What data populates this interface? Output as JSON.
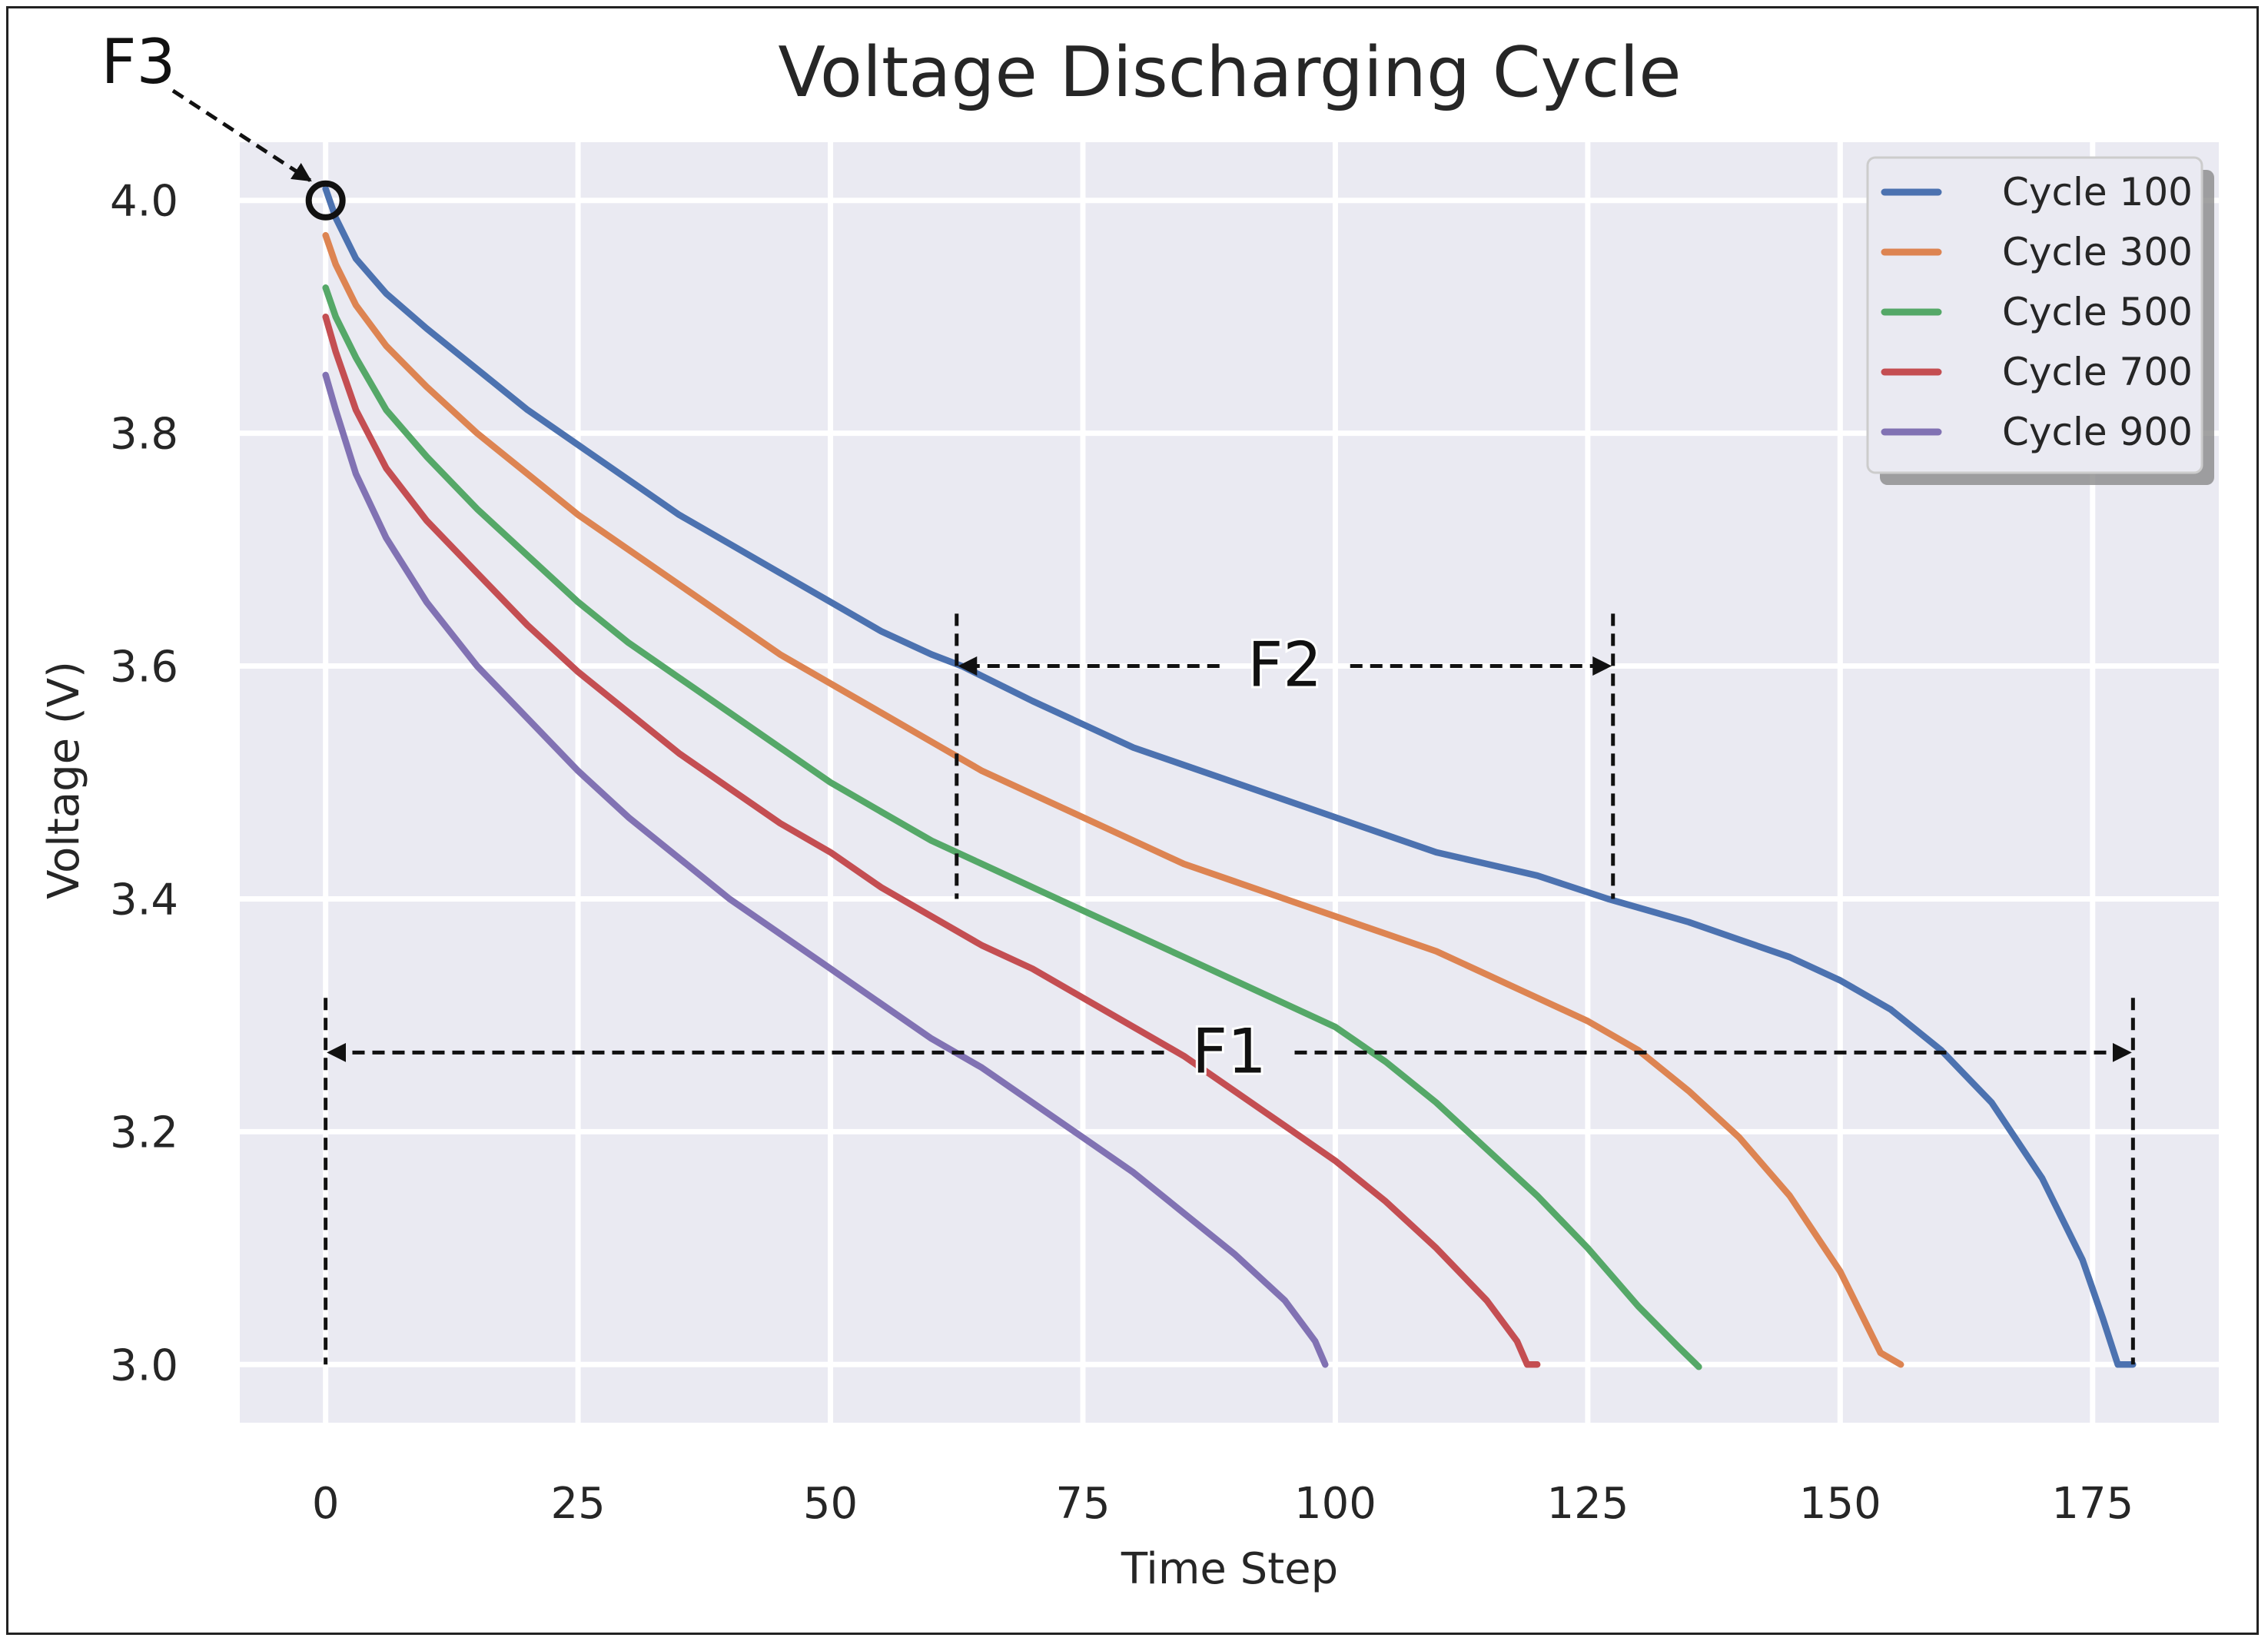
{
  "chart_data": {
    "type": "line",
    "title": "Voltage Discharging Cycle",
    "xlabel": "Time Step",
    "ylabel": "Voltage (V)",
    "xlim": [
      -8.5,
      187.5
    ],
    "ylim": [
      2.95,
      4.05
    ],
    "xticks": [
      0,
      25,
      50,
      75,
      100,
      125,
      150,
      175
    ],
    "yticks": [
      3.0,
      3.2,
      3.4,
      3.6,
      3.8,
      4.0
    ],
    "xtick_labels": [
      "0",
      "25",
      "50",
      "75",
      "100",
      "125",
      "150",
      "175"
    ],
    "ytick_labels": [
      "3.0",
      "3.2",
      "3.4",
      "3.6",
      "3.8",
      "4.0"
    ],
    "grid": true,
    "legend_position": "top-right",
    "series": [
      {
        "name": "Cycle 100",
        "color": "#4c72b0",
        "points": [
          [
            0,
            4.01
          ],
          [
            1,
            3.985
          ],
          [
            3,
            3.95
          ],
          [
            6,
            3.92
          ],
          [
            10,
            3.89
          ],
          [
            15,
            3.855
          ],
          [
            20,
            3.82
          ],
          [
            25,
            3.79
          ],
          [
            30,
            3.76
          ],
          [
            35,
            3.73
          ],
          [
            40,
            3.705
          ],
          [
            45,
            3.68
          ],
          [
            50,
            3.655
          ],
          [
            55,
            3.63
          ],
          [
            60,
            3.61
          ],
          [
            63,
            3.6
          ],
          [
            70,
            3.57
          ],
          [
            75,
            3.55
          ],
          [
            80,
            3.53
          ],
          [
            85,
            3.515
          ],
          [
            90,
            3.5
          ],
          [
            95,
            3.485
          ],
          [
            100,
            3.47
          ],
          [
            105,
            3.455
          ],
          [
            110,
            3.44
          ],
          [
            115,
            3.43
          ],
          [
            120,
            3.42
          ],
          [
            127,
            3.4
          ],
          [
            135,
            3.38
          ],
          [
            140,
            3.365
          ],
          [
            145,
            3.35
          ],
          [
            150,
            3.33
          ],
          [
            155,
            3.305
          ],
          [
            160,
            3.27
          ],
          [
            165,
            3.225
          ],
          [
            170,
            3.16
          ],
          [
            174,
            3.09
          ],
          [
            176,
            3.04
          ],
          [
            177.5,
            3.0
          ],
          [
            179,
            3.0
          ]
        ]
      },
      {
        "name": "Cycle 300",
        "color": "#dd8452",
        "points": [
          [
            0,
            3.97
          ],
          [
            1,
            3.945
          ],
          [
            3,
            3.91
          ],
          [
            6,
            3.875
          ],
          [
            10,
            3.84
          ],
          [
            15,
            3.8
          ],
          [
            20,
            3.765
          ],
          [
            25,
            3.73
          ],
          [
            30,
            3.7
          ],
          [
            35,
            3.67
          ],
          [
            40,
            3.64
          ],
          [
            45,
            3.61
          ],
          [
            50,
            3.585
          ],
          [
            55,
            3.56
          ],
          [
            60,
            3.535
          ],
          [
            65,
            3.51
          ],
          [
            70,
            3.49
          ],
          [
            75,
            3.47
          ],
          [
            80,
            3.45
          ],
          [
            85,
            3.43
          ],
          [
            90,
            3.415
          ],
          [
            95,
            3.4
          ],
          [
            100,
            3.385
          ],
          [
            105,
            3.37
          ],
          [
            110,
            3.355
          ],
          [
            115,
            3.335
          ],
          [
            120,
            3.315
          ],
          [
            125,
            3.295
          ],
          [
            130,
            3.27
          ],
          [
            135,
            3.235
          ],
          [
            140,
            3.195
          ],
          [
            145,
            3.145
          ],
          [
            150,
            3.08
          ],
          [
            154,
            3.01
          ],
          [
            156,
            3.0
          ]
        ]
      },
      {
        "name": "Cycle 500",
        "color": "#55a868",
        "points": [
          [
            0,
            3.925
          ],
          [
            1,
            3.9
          ],
          [
            3,
            3.865
          ],
          [
            6,
            3.82
          ],
          [
            10,
            3.78
          ],
          [
            15,
            3.735
          ],
          [
            20,
            3.695
          ],
          [
            25,
            3.655
          ],
          [
            30,
            3.62
          ],
          [
            35,
            3.59
          ],
          [
            40,
            3.56
          ],
          [
            45,
            3.53
          ],
          [
            50,
            3.5
          ],
          [
            55,
            3.475
          ],
          [
            60,
            3.45
          ],
          [
            65,
            3.43
          ],
          [
            70,
            3.41
          ],
          [
            75,
            3.39
          ],
          [
            80,
            3.37
          ],
          [
            85,
            3.35
          ],
          [
            90,
            3.33
          ],
          [
            95,
            3.31
          ],
          [
            100,
            3.29
          ],
          [
            105,
            3.26
          ],
          [
            110,
            3.225
          ],
          [
            115,
            3.185
          ],
          [
            120,
            3.145
          ],
          [
            125,
            3.1
          ],
          [
            130,
            3.05
          ],
          [
            134,
            3.015
          ],
          [
            136,
            2.998
          ]
        ]
      },
      {
        "name": "Cycle 700",
        "color": "#c44e52",
        "points": [
          [
            0,
            3.9
          ],
          [
            1,
            3.87
          ],
          [
            3,
            3.82
          ],
          [
            6,
            3.77
          ],
          [
            10,
            3.725
          ],
          [
            15,
            3.68
          ],
          [
            20,
            3.635
          ],
          [
            25,
            3.595
          ],
          [
            30,
            3.56
          ],
          [
            35,
            3.525
          ],
          [
            40,
            3.495
          ],
          [
            45,
            3.465
          ],
          [
            50,
            3.44
          ],
          [
            55,
            3.41
          ],
          [
            60,
            3.385
          ],
          [
            65,
            3.36
          ],
          [
            70,
            3.34
          ],
          [
            75,
            3.315
          ],
          [
            80,
            3.29
          ],
          [
            85,
            3.265
          ],
          [
            90,
            3.235
          ],
          [
            95,
            3.205
          ],
          [
            100,
            3.175
          ],
          [
            105,
            3.14
          ],
          [
            110,
            3.1
          ],
          [
            115,
            3.055
          ],
          [
            118,
            3.02
          ],
          [
            119,
            3.0
          ],
          [
            120,
            3.0
          ]
        ]
      },
      {
        "name": "Cycle 900",
        "color": "#8172b3",
        "points": [
          [
            0,
            3.85
          ],
          [
            1,
            3.82
          ],
          [
            3,
            3.765
          ],
          [
            6,
            3.71
          ],
          [
            10,
            3.655
          ],
          [
            15,
            3.6
          ],
          [
            20,
            3.555
          ],
          [
            25,
            3.51
          ],
          [
            30,
            3.47
          ],
          [
            35,
            3.435
          ],
          [
            40,
            3.4
          ],
          [
            45,
            3.37
          ],
          [
            50,
            3.34
          ],
          [
            55,
            3.31
          ],
          [
            60,
            3.28
          ],
          [
            65,
            3.255
          ],
          [
            70,
            3.225
          ],
          [
            75,
            3.195
          ],
          [
            80,
            3.165
          ],
          [
            85,
            3.13
          ],
          [
            90,
            3.095
          ],
          [
            95,
            3.055
          ],
          [
            98,
            3.02
          ],
          [
            99,
            3.0
          ]
        ]
      }
    ],
    "annotations": [
      {
        "label": "F1",
        "type": "range",
        "x_start": 0,
        "x_end": 179,
        "y": 3.268,
        "vline_y_bottom": 3.0,
        "vline_y_top": 3.315
      },
      {
        "label": "F2",
        "type": "range",
        "x_start": 62.5,
        "x_end": 127.5,
        "y": 3.6,
        "vline_y_bottom": 3.4,
        "vline_y_top": 3.645
      },
      {
        "label": "F3",
        "type": "point",
        "x": 0,
        "y": 4.0
      }
    ]
  }
}
